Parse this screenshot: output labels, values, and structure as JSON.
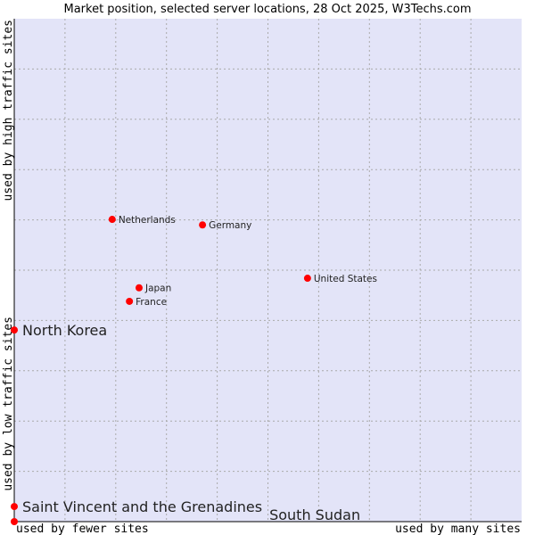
{
  "chart_data": {
    "type": "scatter",
    "title": "Market position, selected server locations, 28 Oct 2025, W3Techs.com",
    "xlabel_left": "used by fewer sites",
    "xlabel_right": "used by many sites",
    "ylabel_top": "used by high traffic sites",
    "ylabel_bottom": "used by low traffic sites",
    "xlim": [
      0,
      100
    ],
    "ylim": [
      0,
      100
    ],
    "grid": true,
    "colors": {
      "plot_bg": "#e3e4f8",
      "point": "#ff0000",
      "grid": "#aaaaaa"
    },
    "points": [
      {
        "label": "Netherlands",
        "x": 19.3,
        "y": 60.1,
        "large": false
      },
      {
        "label": "Germany",
        "x": 37.1,
        "y": 59.0,
        "large": false
      },
      {
        "label": "United States",
        "x": 57.8,
        "y": 48.4,
        "large": false
      },
      {
        "label": "Japan",
        "x": 24.6,
        "y": 46.5,
        "large": false
      },
      {
        "label": "France",
        "x": 22.7,
        "y": 43.8,
        "large": false
      },
      {
        "label": "North Korea",
        "x": 0,
        "y": 38.1,
        "large": true
      },
      {
        "label": "Saint Vincent and the Grenadines",
        "x": 0,
        "y": 3.0,
        "large": true
      },
      {
        "label": "South Sudan",
        "x": 0,
        "y": 0,
        "large": true
      }
    ]
  }
}
